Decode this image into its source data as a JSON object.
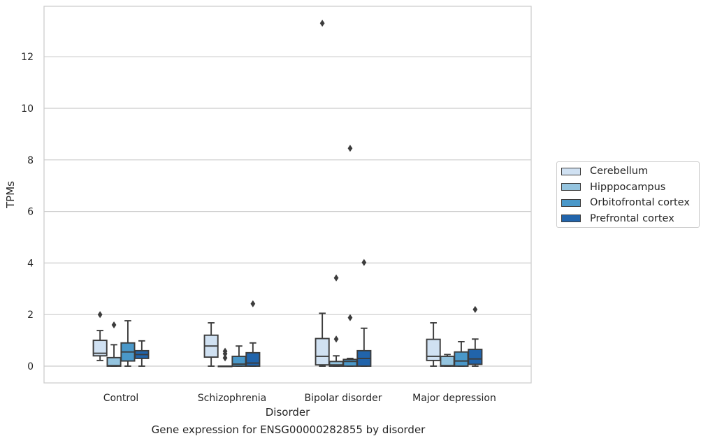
{
  "chart_data": {
    "type": "boxplot",
    "caption": "Gene expression for ENSG00000282855 by disorder",
    "xlabel": "Disorder",
    "ylabel": "TPMs",
    "ylim": [
      -0.65,
      13.9
    ],
    "yticks": [
      0,
      2,
      4,
      6,
      8,
      10,
      12
    ],
    "grid": "horizontal",
    "legend_placement": "center-right",
    "categories": [
      "Control",
      "Schizophrenia",
      "Bipolar disorder",
      "Major depression"
    ],
    "series": [
      {
        "name": "Cerebellum",
        "color": "#d0e1f2",
        "boxes": [
          {
            "whislo": 0.22,
            "q1": 0.4,
            "med": 0.5,
            "q3": 1.0,
            "whishi": 1.38,
            "fliers": [
              2.0
            ]
          },
          {
            "whislo": 0.0,
            "q1": 0.35,
            "med": 0.78,
            "q3": 1.2,
            "whishi": 1.68,
            "fliers": []
          },
          {
            "whislo": 0.0,
            "q1": 0.05,
            "med": 0.38,
            "q3": 1.07,
            "whishi": 2.05,
            "fliers": [
              13.3
            ]
          },
          {
            "whislo": 0.0,
            "q1": 0.22,
            "med": 0.38,
            "q3": 1.04,
            "whishi": 1.68,
            "fliers": []
          }
        ]
      },
      {
        "name": "Hipppocampus",
        "color": "#94c4df",
        "boxes": [
          {
            "whislo": 0.0,
            "q1": 0.0,
            "med": 0.02,
            "q3": 0.33,
            "whishi": 0.83,
            "fliers": [
              1.6
            ]
          },
          {
            "whislo": 0.0,
            "q1": 0.0,
            "med": 0.0,
            "q3": 0.0,
            "whishi": 0.0,
            "fliers": [
              0.32,
              0.48,
              0.58
            ]
          },
          {
            "whislo": 0.0,
            "q1": 0.0,
            "med": 0.05,
            "q3": 0.18,
            "whishi": 0.4,
            "fliers": [
              1.05,
              3.42
            ]
          },
          {
            "whislo": 0.0,
            "q1": 0.0,
            "med": 0.02,
            "q3": 0.38,
            "whishi": 0.45,
            "fliers": []
          }
        ]
      },
      {
        "name": "Orbitofrontal cortex",
        "color": "#4a98c9",
        "boxes": [
          {
            "whislo": 0.0,
            "q1": 0.2,
            "med": 0.55,
            "q3": 0.9,
            "whishi": 1.76,
            "fliers": []
          },
          {
            "whislo": 0.0,
            "q1": 0.0,
            "med": 0.08,
            "q3": 0.38,
            "whishi": 0.78,
            "fliers": []
          },
          {
            "whislo": 0.0,
            "q1": 0.0,
            "med": 0.18,
            "q3": 0.26,
            "whishi": 0.3,
            "fliers": [
              1.88,
              8.45
            ]
          },
          {
            "whislo": 0.0,
            "q1": 0.0,
            "med": 0.2,
            "q3": 0.55,
            "whishi": 0.95,
            "fliers": []
          }
        ]
      },
      {
        "name": "Prefrontal cortex",
        "color": "#2164ab",
        "boxes": [
          {
            "whislo": 0.0,
            "q1": 0.3,
            "med": 0.45,
            "q3": 0.6,
            "whishi": 0.98,
            "fliers": []
          },
          {
            "whislo": 0.0,
            "q1": 0.0,
            "med": 0.12,
            "q3": 0.52,
            "whishi": 0.9,
            "fliers": [
              2.42
            ]
          },
          {
            "whislo": 0.0,
            "q1": 0.0,
            "med": 0.3,
            "q3": 0.6,
            "whishi": 1.47,
            "fliers": [
              4.02
            ]
          },
          {
            "whislo": 0.0,
            "q1": 0.07,
            "med": 0.28,
            "q3": 0.65,
            "whishi": 1.05,
            "fliers": [
              2.2
            ]
          }
        ]
      }
    ]
  }
}
